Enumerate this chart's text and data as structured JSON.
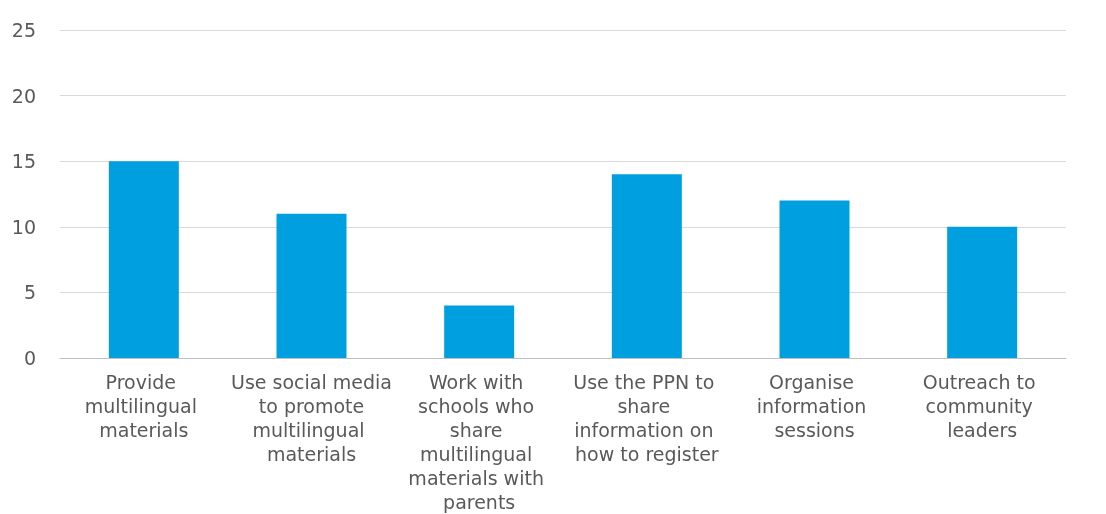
{
  "chart_data": {
    "type": "bar",
    "categories": [
      "Provide multilingual materials",
      "Use social media to promote multilingual materials",
      "Work with schools who share multilingual materials with parents",
      "Use the PPN to share information on how to register",
      "Organise information sessions",
      "Outreach to community leaders"
    ],
    "values": [
      15,
      11,
      4,
      14,
      12,
      10
    ],
    "color": "#009fdf",
    "ylim": [
      0,
      25
    ],
    "yticks": [
      0,
      5,
      10,
      15,
      20,
      25
    ],
    "grid": "y"
  }
}
